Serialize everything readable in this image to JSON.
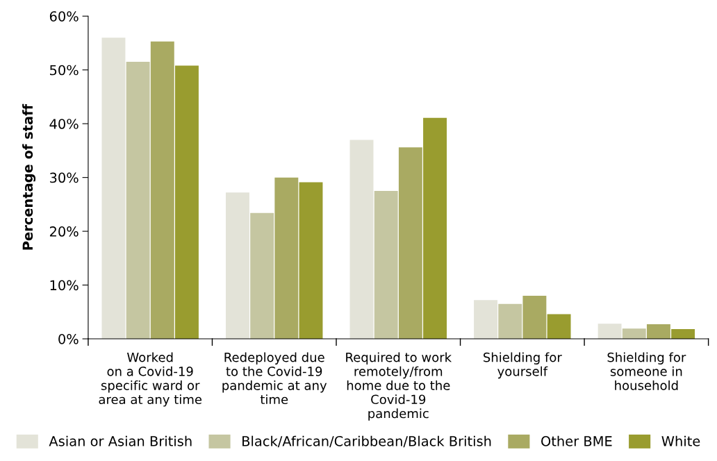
{
  "chart_data": {
    "type": "bar",
    "ylabel": "Percentage of staff",
    "categories": [
      "Worked\non a Covid-19\nspecific ward or\narea at any time",
      "Redeployed due\nto the Covid-19\npandemic at any\ntime",
      "Required to work\nremotely/from\nhome due to the\nCovid-19\npandemic",
      "Shielding for\nyourself",
      "Shielding for\nsomeone in\nhousehold"
    ],
    "series": [
      {
        "name": "Asian or Asian British",
        "color": "#e3e3d8",
        "values": [
          56,
          27.2,
          37,
          7.2,
          2.8
        ]
      },
      {
        "name": "Black/African/Caribbean/Black British",
        "color": "#c5c6a1",
        "values": [
          51.5,
          23.4,
          27.5,
          6.5,
          1.9
        ]
      },
      {
        "name": "Other BME",
        "color": "#a9aa62",
        "values": [
          55.3,
          30,
          35.6,
          8,
          2.7
        ]
      },
      {
        "name": "White",
        "color": "#999c2f",
        "values": [
          50.8,
          29.1,
          41.1,
          4.6,
          1.8
        ]
      }
    ],
    "ylim": [
      0,
      60
    ],
    "yticks": [
      {
        "value": 0,
        "label": "0%"
      },
      {
        "value": 10,
        "label": "10%"
      },
      {
        "value": 20,
        "label": "20%"
      },
      {
        "value": 30,
        "label": "30%"
      },
      {
        "value": 40,
        "label": "40%"
      },
      {
        "value": 50,
        "label": "50%"
      },
      {
        "value": 60,
        "label": "60%"
      }
    ],
    "grid": false,
    "legend": "bottom"
  }
}
